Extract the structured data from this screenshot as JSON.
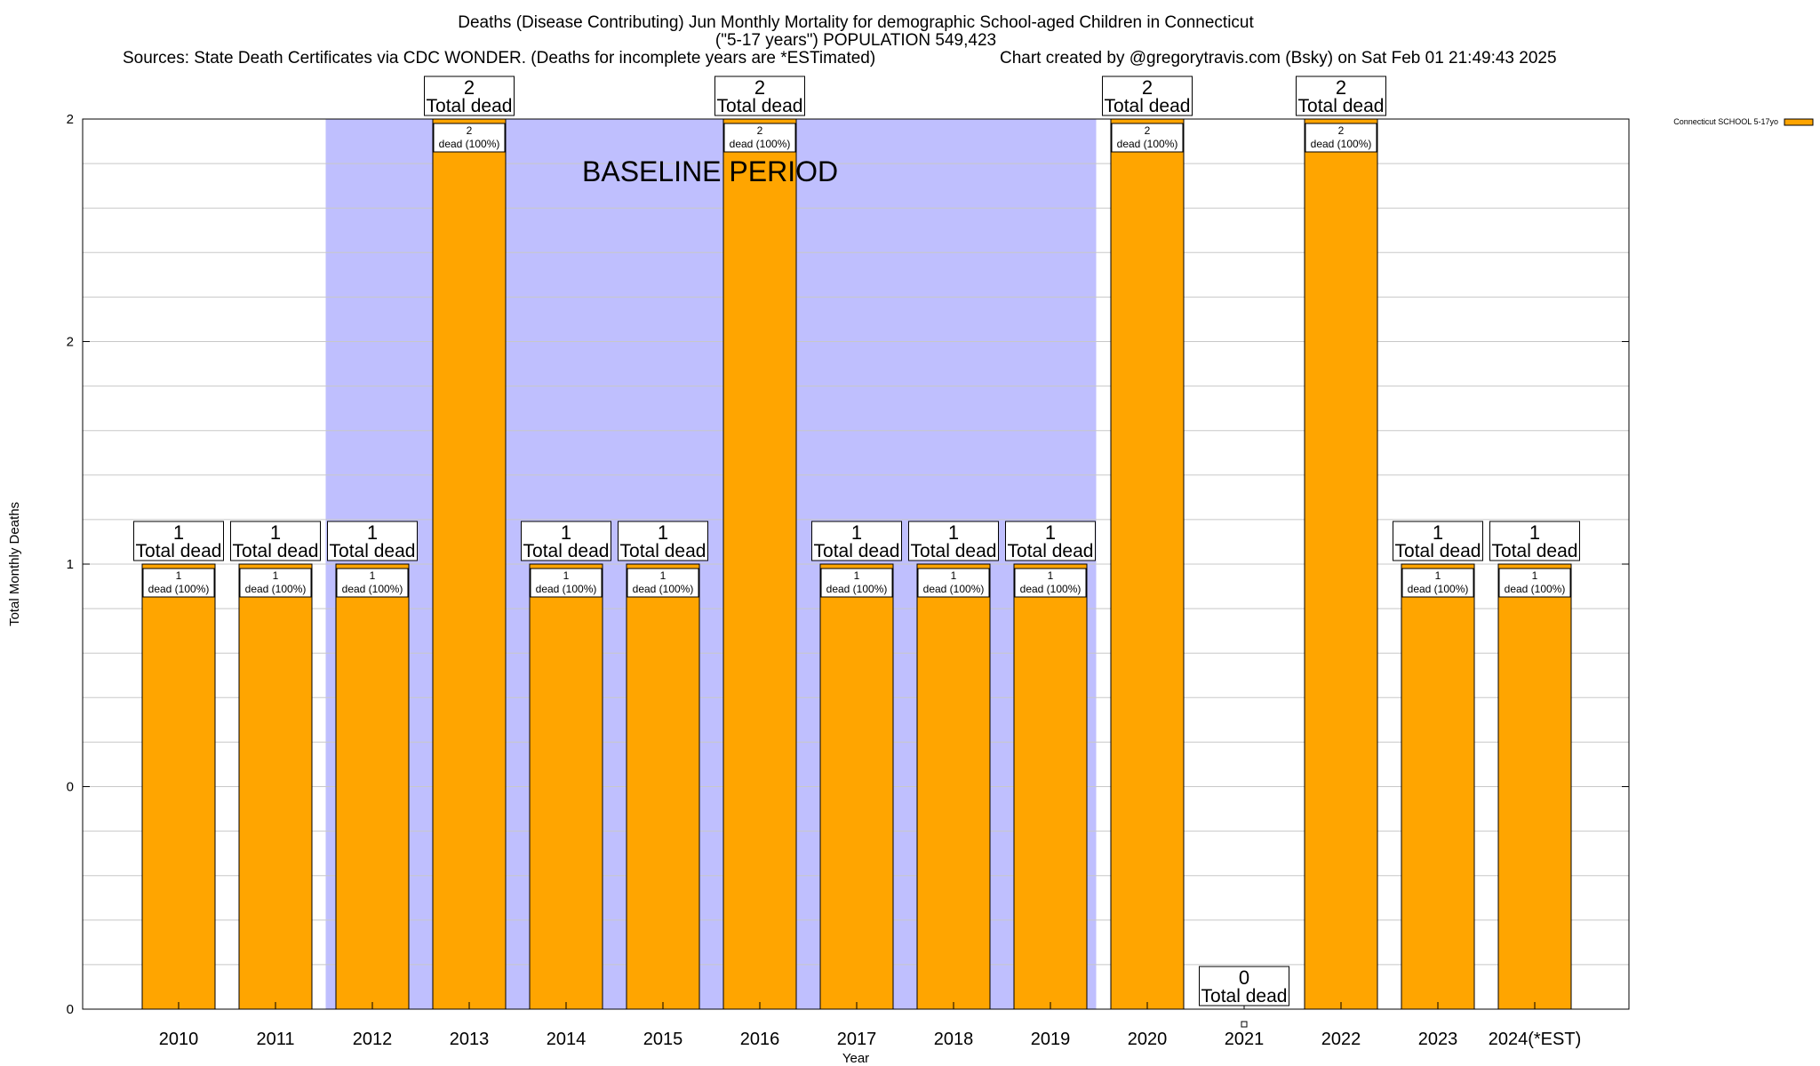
{
  "title": {
    "line1": "Deaths (Disease Contributing) Jun Monthly Mortality for demographic School-aged Children in Connecticut",
    "line2": "(\"5-17 years\") POPULATION 549,423",
    "sources": "Sources: State Death Certificates via CDC WONDER. (Deaths for incomplete years are *ESTimated)",
    "credit": "Chart created by @gregorytravis.com (Bsky) on Sat Feb 01 21:49:43 2025"
  },
  "annotations": {
    "baseline": "BASELINE PERIOD"
  },
  "colors": {
    "bar": "#ffa500",
    "baseline_band": "#bfbffe",
    "grid": "#c8c8c8"
  },
  "chart_data": {
    "type": "bar",
    "title": "Deaths (Disease Contributing) Jun Monthly Mortality for demographic School-aged Children in Connecticut",
    "xlabel": "Year",
    "ylabel": "Total Monthly Deaths",
    "ylim": [
      0,
      2
    ],
    "y_tick_labels": [
      "0",
      "0",
      "1",
      "2",
      "2"
    ],
    "y_tick_values": [
      0,
      0.5,
      1,
      1.5,
      2
    ],
    "grid": true,
    "categories": [
      "2010",
      "2011",
      "2012",
      "2013",
      "2014",
      "2015",
      "2016",
      "2017",
      "2018",
      "2019",
      "2020",
      "2021",
      "2022",
      "2023",
      "2024(*EST)"
    ],
    "baseline_period": [
      "2012",
      "2019"
    ],
    "series": [
      {
        "name": "Connecticut SCHOOL 5-17yo",
        "values": [
          1,
          1,
          1,
          2,
          1,
          1,
          2,
          1,
          1,
          1,
          2,
          0,
          2,
          1,
          1
        ]
      }
    ],
    "total_labels_word": "Total dead",
    "inner_labels": [
      "1\ndead (100%)",
      "1\ndead (100%)",
      "1\ndead (100%)",
      "2\ndead (100%)",
      "1\ndead (100%)",
      "1\ndead (100%)",
      "2\ndead (100%)",
      "1\ndead (100%)",
      "1\ndead (100%)",
      "1\ndead (100%)",
      "2\ndead (100%)",
      "",
      "2\ndead (100%)",
      "1\ndead (100%)",
      "1\ndead (100%)"
    ],
    "legend": {
      "entries": [
        "Connecticut SCHOOL 5-17yo"
      ],
      "placement": "top-right"
    }
  }
}
